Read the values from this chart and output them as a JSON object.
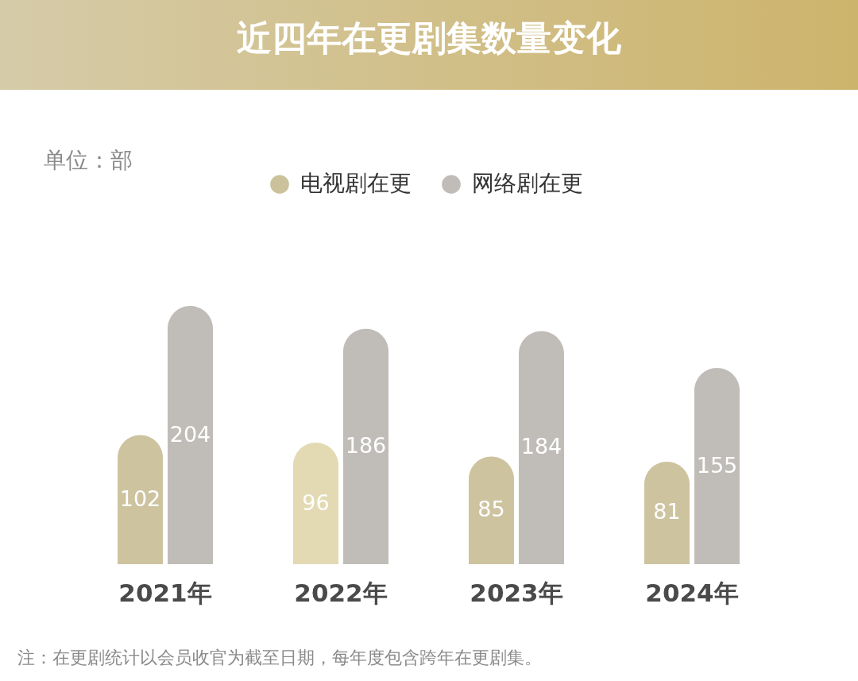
{
  "chart_data": {
    "type": "bar",
    "title": "近四年在更剧集数量变化",
    "subtitle": "单位：部",
    "categories": [
      "2021年",
      "2022年",
      "2023年",
      "2024年"
    ],
    "series": [
      {
        "name": "电视剧在更",
        "color": "#cbc29c",
        "colors": [
          "#cdc39f",
          "#e3dab3",
          "#cdc39f",
          "#cdc39f"
        ],
        "values": [
          102,
          96,
          85,
          81
        ]
      },
      {
        "name": "网络剧在更",
        "color": "#c0bdb9",
        "values": [
          204,
          186,
          184,
          155
        ]
      }
    ],
    "data_labels": true,
    "legend": "top",
    "tick_labels": "x",
    "annotations": [
      "注：在更剧统计以会员收官为截至日期，每年度包含跨年在更剧集。"
    ]
  }
}
